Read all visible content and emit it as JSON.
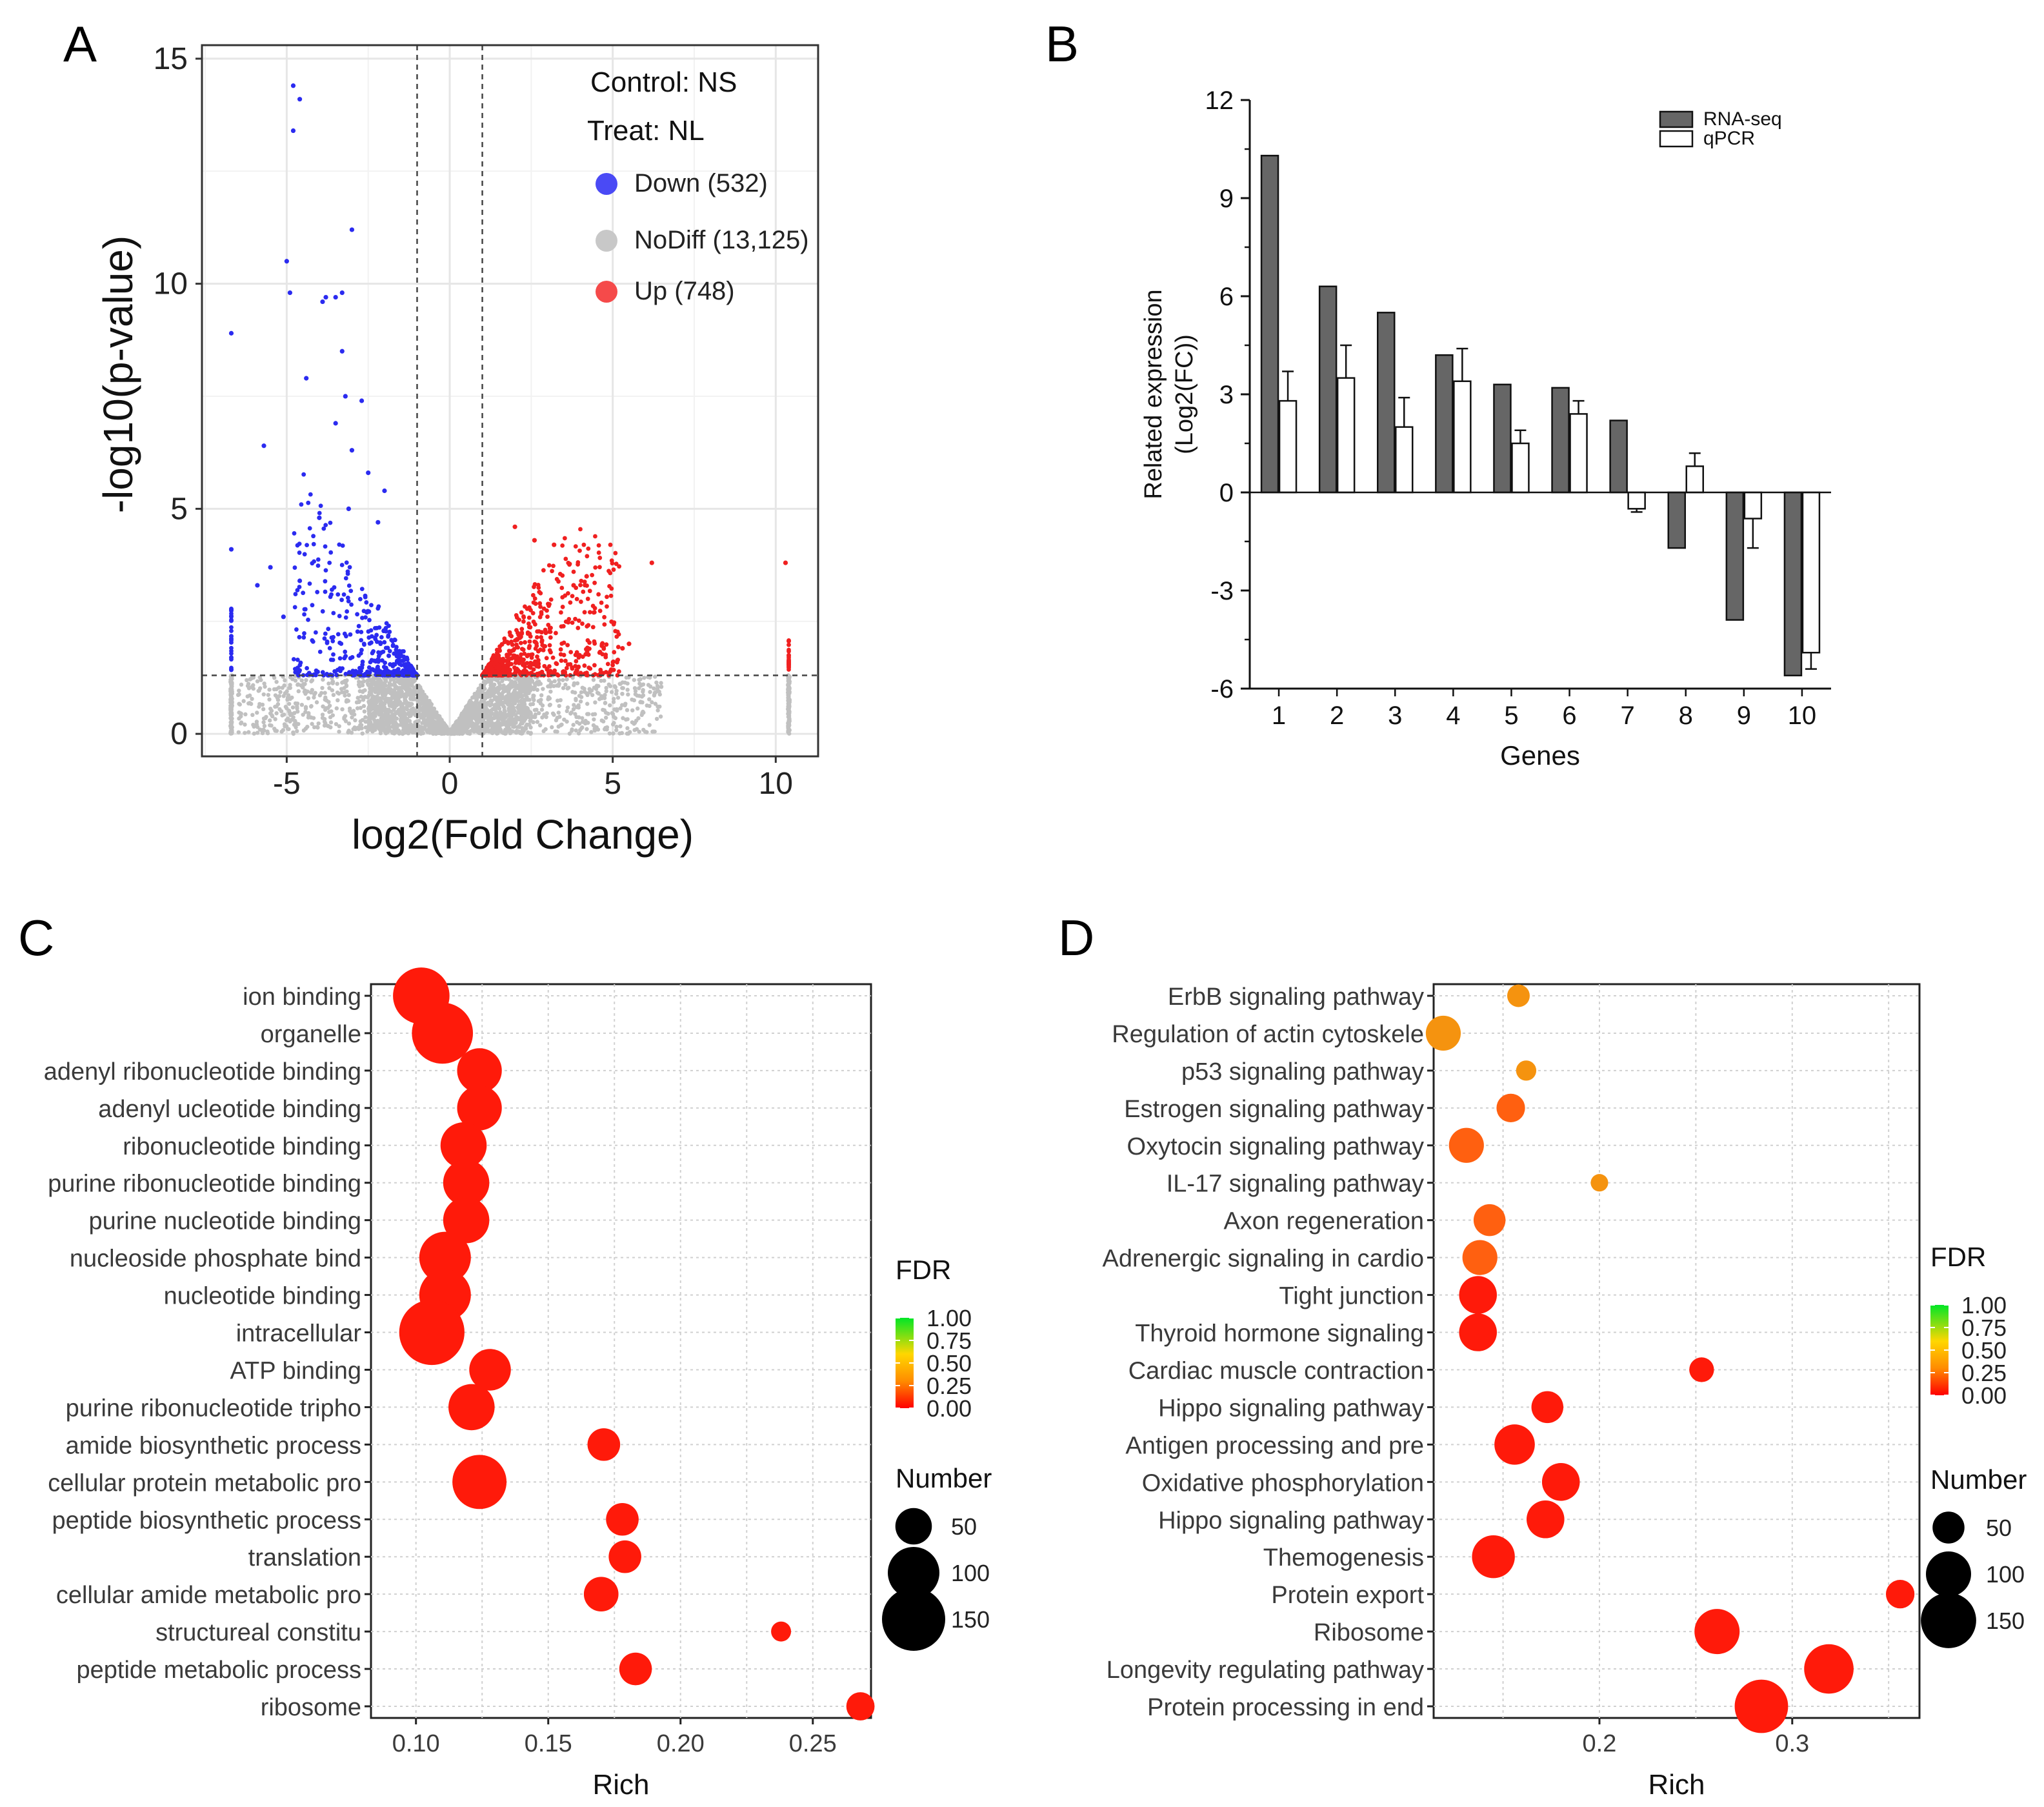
{
  "chart_data": [
    {
      "panel": "A",
      "type": "scatter",
      "title": "",
      "xlabel": "log2(Fold Change)",
      "ylabel": "-log10(p-value)",
      "xlim": [
        -7.6,
        11.3
      ],
      "ylim": [
        -0.5,
        15.3
      ],
      "x_ticks": [
        -5,
        0,
        5,
        10
      ],
      "x_tick_labels": [
        "-5",
        "0",
        "5",
        "10"
      ],
      "y_ticks": [
        0,
        5,
        10,
        15
      ],
      "y_tick_labels": [
        "0",
        "5",
        "10",
        "15"
      ],
      "grid": true,
      "thresholds": {
        "x": [
          -1,
          1
        ],
        "y": 1.3
      },
      "info": [
        "Control: NS",
        "Treat: NL"
      ],
      "colors": {
        "down": "#2b2bf0",
        "nodiff": "#c0c0c0",
        "up": "#f02020"
      },
      "legend": [
        {
          "label": "Down (532)",
          "color": "#4a4af5"
        },
        {
          "label": "NoDiff (13,125)",
          "color": "#c8c8c8"
        },
        {
          "label": "Up (748)",
          "color": "#f54a4a"
        }
      ],
      "series_highlights": {
        "down": [
          [
            -4.8,
            14.4
          ],
          [
            -4.6,
            14.1
          ],
          [
            -4.8,
            13.4
          ],
          [
            -3.0,
            11.2
          ],
          [
            -5.0,
            10.5
          ],
          [
            -4.9,
            9.8
          ],
          [
            -3.8,
            9.7
          ],
          [
            -3.5,
            9.7
          ],
          [
            -3.3,
            9.8
          ],
          [
            -3.9,
            9.6
          ],
          [
            -6.7,
            8.9
          ],
          [
            -3.3,
            8.5
          ],
          [
            -4.4,
            7.9
          ],
          [
            -2.7,
            7.4
          ],
          [
            -3.2,
            7.5
          ],
          [
            -3.5,
            6.9
          ],
          [
            -5.7,
            6.4
          ],
          [
            -3.0,
            6.3
          ],
          [
            -2.5,
            5.8
          ],
          [
            -2.0,
            5.4
          ],
          [
            -6.7,
            4.1
          ],
          [
            -4.0,
            4.8
          ],
          [
            -5.5,
            3.7
          ],
          [
            -4.6,
            3.4
          ],
          [
            -5.9,
            3.3
          ],
          [
            -5.1,
            2.6
          ],
          [
            -3.1,
            5.0
          ],
          [
            -2.2,
            4.7
          ]
        ],
        "up": [
          [
            2.0,
            4.6
          ],
          [
            2.6,
            4.3
          ],
          [
            3.2,
            4.2
          ],
          [
            6.2,
            3.8
          ],
          [
            10.3,
            3.8
          ],
          [
            4.2,
            3.5
          ],
          [
            3.8,
            3.3
          ],
          [
            5.5,
            2.0
          ],
          [
            5.3,
            1.9
          ]
        ]
      }
    },
    {
      "panel": "B",
      "type": "bar",
      "title": "",
      "xlabel": "Genes",
      "ylabel": "Related expression",
      "ylabel2": "(Log2(FC))",
      "categories": [
        "1",
        "2",
        "3",
        "4",
        "5",
        "6",
        "7",
        "8",
        "9",
        "10"
      ],
      "series": [
        {
          "name": "RNA-seq",
          "color": "#666666",
          "values": [
            10.3,
            6.3,
            5.5,
            4.2,
            3.3,
            3.2,
            2.2,
            -1.7,
            -3.9,
            -5.6
          ]
        },
        {
          "name": "qPCR",
          "color": "#ffffff",
          "values": [
            2.8,
            3.5,
            2.0,
            3.4,
            1.5,
            2.4,
            -0.5,
            0.8,
            -0.8,
            -4.9
          ],
          "errors": [
            0.9,
            1.0,
            0.9,
            1.0,
            0.4,
            0.4,
            0.1,
            0.4,
            0.9,
            0.5
          ]
        }
      ],
      "ylim": [
        -6,
        12
      ],
      "y_ticks": [
        -6,
        -3,
        0,
        3,
        6,
        9,
        12
      ],
      "y_tick_labels": [
        "-6",
        "-3",
        "0",
        "3",
        "6",
        "9",
        "12"
      ]
    },
    {
      "panel": "C",
      "type": "scatter",
      "title": "",
      "xlabel": "Rich",
      "xlim": [
        0.083,
        0.272
      ],
      "x_ticks": [
        0.1,
        0.15,
        0.2,
        0.25
      ],
      "x_tick_labels": [
        "0.10",
        "0.15",
        "0.20",
        "0.25"
      ],
      "terms": [
        "ion binding",
        "organelle",
        "adenyl ribonucleotide binding",
        "adenyl ucleotide binding",
        "ribonucleotide binding",
        "purine ribonucleotide binding",
        "purine nucleotide binding",
        "nucleoside phosphate bind",
        "nucleotide binding",
        "intracellular",
        "ATP binding",
        "purine ribonucleotide tripho",
        "amide biosynthetic process",
        "cellular protein metabolic pro",
        "peptide biosynthetic process",
        "translation",
        "cellular amide metabolic pro",
        "structureal constitu",
        "peptide metabolic process",
        "ribosome"
      ],
      "rich": [
        0.102,
        0.11,
        0.124,
        0.124,
        0.118,
        0.119,
        0.119,
        0.111,
        0.111,
        0.106,
        0.128,
        0.121,
        0.171,
        0.124,
        0.178,
        0.179,
        0.17,
        0.238,
        0.183,
        0.268
      ],
      "number": [
        120,
        140,
        75,
        75,
        80,
        80,
        80,
        100,
        100,
        160,
        65,
        80,
        40,
        110,
        40,
        40,
        45,
        15,
        40,
        30
      ],
      "fdr": [
        0,
        0,
        0,
        0,
        0,
        0,
        0,
        0,
        0,
        0,
        0,
        0,
        0,
        0,
        0,
        0,
        0,
        0,
        0,
        0
      ],
      "grid": true,
      "color_legend": {
        "title": "FDR",
        "ticks": [
          "1.00",
          "0.75",
          "0.50",
          "0.25",
          "0.00"
        ],
        "colors": [
          "#00e626",
          "#ffd700",
          "#ff8c00",
          "#ff0000"
        ]
      },
      "size_legend": {
        "title": "Number",
        "values": [
          50,
          100,
          150
        ],
        "labels": [
          "50",
          "100",
          "150"
        ]
      }
    },
    {
      "panel": "D",
      "type": "scatter",
      "title": "",
      "xlabel": "Rich",
      "xlim": [
        0.114,
        0.366
      ],
      "x_ticks": [
        0.2,
        0.3
      ],
      "x_tick_labels": [
        "0.2",
        "0.3"
      ],
      "terms": [
        "ErbB signaling pathway",
        "Regulation of actin cytoskele",
        "p53 signaling pathway",
        "Estrogen signaling pathway",
        "Oxytocin signaling pathway",
        "IL-17 signaling pathway",
        "Axon regeneration",
        "Adrenergic signaling in cardio",
        "Tight junction",
        "Thyroid hormone signaling",
        "Cardiac muscle contraction",
        "Hippo signaling pathway",
        "Antigen processing and pre",
        "Oxidative phosphorylation",
        "Hippo signaling pathway",
        "Themogenesis",
        "Protein export",
        "Ribosome",
        "Longevity regulating pathway",
        "Protein processing in end"
      ],
      "rich": [
        0.158,
        0.119,
        0.162,
        0.154,
        0.131,
        0.2,
        0.143,
        0.138,
        0.137,
        0.137,
        0.253,
        0.173,
        0.156,
        0.18,
        0.172,
        0.145,
        0.356,
        0.261,
        0.319,
        0.284
      ],
      "number": [
        25,
        60,
        20,
        40,
        60,
        15,
        50,
        60,
        70,
        70,
        30,
        50,
        80,
        70,
        70,
        90,
        40,
        100,
        120,
        140
      ],
      "fdr": [
        0.22,
        0.25,
        0.2,
        0.1,
        0.15,
        0.2,
        0.12,
        0.12,
        0.02,
        0.02,
        0.02,
        0.02,
        0.01,
        0.01,
        0.01,
        0.01,
        0.01,
        0.01,
        0.01,
        0.01
      ],
      "grid": true,
      "color_legend": {
        "title": "FDR",
        "ticks": [
          "1.00",
          "0.75",
          "0.50",
          "0.25",
          "0.00"
        ],
        "colors": [
          "#00e626",
          "#ffd700",
          "#ff8c00",
          "#ff0000"
        ]
      },
      "size_legend": {
        "title": "Number",
        "values": [
          50,
          100,
          150
        ],
        "labels": [
          "50",
          "100",
          "150"
        ]
      }
    }
  ]
}
